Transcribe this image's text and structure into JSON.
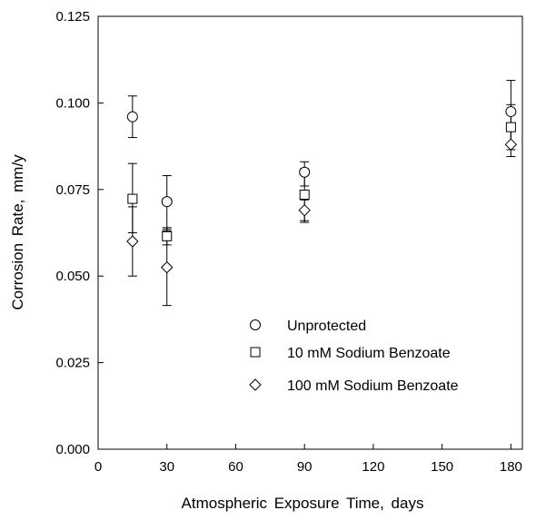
{
  "chart_data": {
    "type": "scatter",
    "xlabel": "Atmospheric Exposure Time,  days",
    "ylabel": "Corrosion Rate,  mm/y",
    "xlim": [
      0,
      185
    ],
    "ylim": [
      0,
      0.125
    ],
    "x_ticks": [
      0,
      30,
      60,
      90,
      120,
      150,
      180
    ],
    "y_ticks": [
      0,
      0.025,
      0.05,
      0.075,
      0.1,
      0.125
    ],
    "x_tick_labels": [
      "0",
      "30",
      "60",
      "90",
      "120",
      "150",
      "180"
    ],
    "y_tick_labels": [
      "0.000",
      "0.025",
      "0.050",
      "0.075",
      "0.100",
      "0.125"
    ],
    "grid": false,
    "legend_position": "lower-right",
    "error_bars": true,
    "series": [
      {
        "name": "Unprotected",
        "marker": "circle",
        "points": [
          {
            "x": 15,
            "y": 0.096,
            "err_low": 0.09,
            "err_high": 0.102
          },
          {
            "x": 30,
            "y": 0.0715,
            "err_low": 0.063,
            "err_high": 0.079
          },
          {
            "x": 90,
            "y": 0.08,
            "err_low": 0.076,
            "err_high": 0.083
          },
          {
            "x": 180,
            "y": 0.0975,
            "err_low": 0.088,
            "err_high": 0.1065
          }
        ]
      },
      {
        "name": "10 mM Sodium Benzoate",
        "marker": "square",
        "points": [
          {
            "x": 15,
            "y": 0.0723,
            "err_low": 0.0625,
            "err_high": 0.0825
          },
          {
            "x": 30,
            "y": 0.0615,
            "err_low": 0.059,
            "err_high": 0.064
          },
          {
            "x": 90,
            "y": 0.0735,
            "err_low": 0.0655,
            "err_high": 0.081
          },
          {
            "x": 180,
            "y": 0.093,
            "err_low": 0.0865,
            "err_high": 0.0995
          }
        ]
      },
      {
        "name": "100 mM Sodium Benzoate",
        "marker": "diamond",
        "points": [
          {
            "x": 15,
            "y": 0.06,
            "err_low": 0.05,
            "err_high": 0.07
          },
          {
            "x": 30,
            "y": 0.0525,
            "err_low": 0.0415,
            "err_high": 0.0635
          },
          {
            "x": 90,
            "y": 0.069,
            "err_low": 0.066,
            "err_high": 0.072
          },
          {
            "x": 180,
            "y": 0.088,
            "err_low": 0.0845,
            "err_high": 0.092
          }
        ]
      }
    ]
  }
}
